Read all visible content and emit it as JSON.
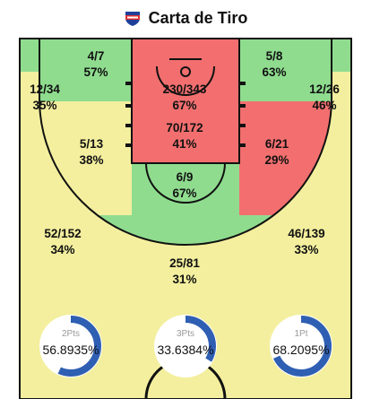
{
  "header": {
    "title": "Carta de Tiro"
  },
  "zones": [
    {
      "id": "left-top",
      "made_att": "4/7",
      "pct": "57%"
    },
    {
      "id": "right-top",
      "made_att": "5/8",
      "pct": "63%"
    },
    {
      "id": "left-corner",
      "made_att": "12/34",
      "pct": "35%"
    },
    {
      "id": "right-corner",
      "made_att": "12/26",
      "pct": "46%"
    },
    {
      "id": "restricted",
      "made_att": "230/343",
      "pct": "67%"
    },
    {
      "id": "paint",
      "made_att": "70/172",
      "pct": "41%"
    },
    {
      "id": "left-mid",
      "made_att": "5/13",
      "pct": "38%"
    },
    {
      "id": "right-mid",
      "made_att": "6/21",
      "pct": "29%"
    },
    {
      "id": "top-key",
      "made_att": "6/9",
      "pct": "67%"
    },
    {
      "id": "left-wing",
      "made_att": "52/152",
      "pct": "34%"
    },
    {
      "id": "right-wing",
      "made_att": "46/139",
      "pct": "33%"
    },
    {
      "id": "top-three",
      "made_att": "25/81",
      "pct": "31%"
    }
  ],
  "summary": [
    {
      "label": "2Pts",
      "value": "56.8935%",
      "fraction": 0.569
    },
    {
      "label": "3Pts",
      "value": "33.6384%",
      "fraction": 0.336
    },
    {
      "label": "1Pt",
      "value": "68.2095%",
      "fraction": 0.682
    }
  ],
  "colors": {
    "green": "#8fdc8f",
    "yellow": "#f3ef9e",
    "red": "#f36f6f",
    "gauge": "#2f5fb3"
  }
}
